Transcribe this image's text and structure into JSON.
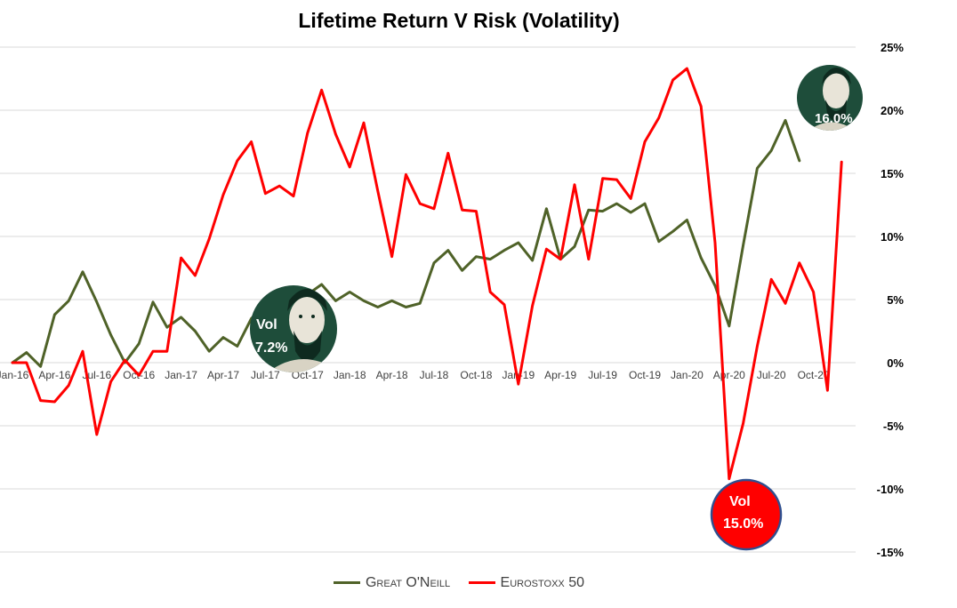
{
  "chart_data": {
    "type": "line",
    "title": "Lifetime Return V Risk (Volatility)",
    "xlabel": "",
    "ylabel": "",
    "ylim": [
      -15,
      25
    ],
    "yticks": [
      25,
      20,
      15,
      10,
      5,
      0,
      -5,
      -10,
      -15
    ],
    "ytick_labels": [
      "25%",
      "20%",
      "15%",
      "10%",
      "5%",
      "0%",
      "-5%",
      "-10%",
      "-15%"
    ],
    "x_tick_labels": [
      "Jan-16",
      "Apr-16",
      "Jul-16",
      "Oct-16",
      "Jan-17",
      "Apr-17",
      "Jul-17",
      "Oct-17",
      "Jan-18",
      "Apr-18",
      "Jul-18",
      "Oct-18",
      "Jan-19",
      "Apr-19",
      "Jul-19",
      "Oct-19",
      "Jan-20",
      "Apr-20",
      "Jul-20",
      "Oct-20"
    ],
    "grid": true,
    "legend_position": "bottom",
    "colors": {
      "great_oneill": "#4f6228",
      "eurostoxx": "#ff0000",
      "badge_green": "#1e4d3a",
      "badge_red": "#ff0000",
      "badge_ring": "#2f4f8f"
    },
    "series": [
      {
        "name": "Great O'Neill",
        "values": [
          0.0,
          0.8,
          -0.3,
          3.8,
          4.9,
          7.2,
          4.8,
          2.2,
          0.0,
          1.5,
          4.8,
          2.8,
          3.6,
          2.5,
          0.9,
          2.0,
          1.3,
          3.5,
          4.6,
          4.8,
          4.2,
          5.4,
          6.2,
          4.9,
          5.6,
          4.9,
          4.4,
          4.9,
          4.4,
          4.7,
          7.9,
          8.9,
          7.3,
          8.4,
          8.2,
          8.9,
          9.5,
          8.1,
          12.2,
          8.2,
          9.2,
          12.1,
          12.0,
          12.6,
          11.9,
          12.6,
          9.6,
          10.4,
          11.3,
          8.3,
          6.1,
          2.9,
          9.3,
          15.4,
          16.8,
          19.2,
          16.0
        ]
      },
      {
        "name": "Eurostoxx 50",
        "values": [
          0.0,
          0.0,
          -3.0,
          -3.1,
          -1.8,
          0.9,
          -5.7,
          -1.5,
          0.2,
          -1.0,
          0.9,
          0.9,
          8.3,
          6.9,
          9.8,
          13.3,
          16.0,
          17.5,
          13.4,
          14.0,
          13.2,
          18.2,
          21.6,
          18.1,
          15.5,
          19.0,
          13.6,
          8.4,
          14.9,
          12.6,
          12.2,
          16.6,
          12.1,
          12.0,
          5.6,
          4.6,
          -1.7,
          4.5,
          9.0,
          8.2,
          14.1,
          8.2,
          14.6,
          14.5,
          13.0,
          17.5,
          19.4,
          22.4,
          23.3,
          20.3,
          9.5,
          -9.2,
          -4.8,
          1.3,
          6.6,
          4.7,
          7.9,
          5.6,
          -2.2,
          15.9
        ]
      }
    ],
    "annotations": [
      {
        "label": "Vol",
        "value": "7.2%"
      },
      {
        "label": "",
        "value": "16.0%"
      },
      {
        "label": "Vol",
        "value": "15.0%"
      }
    ]
  }
}
